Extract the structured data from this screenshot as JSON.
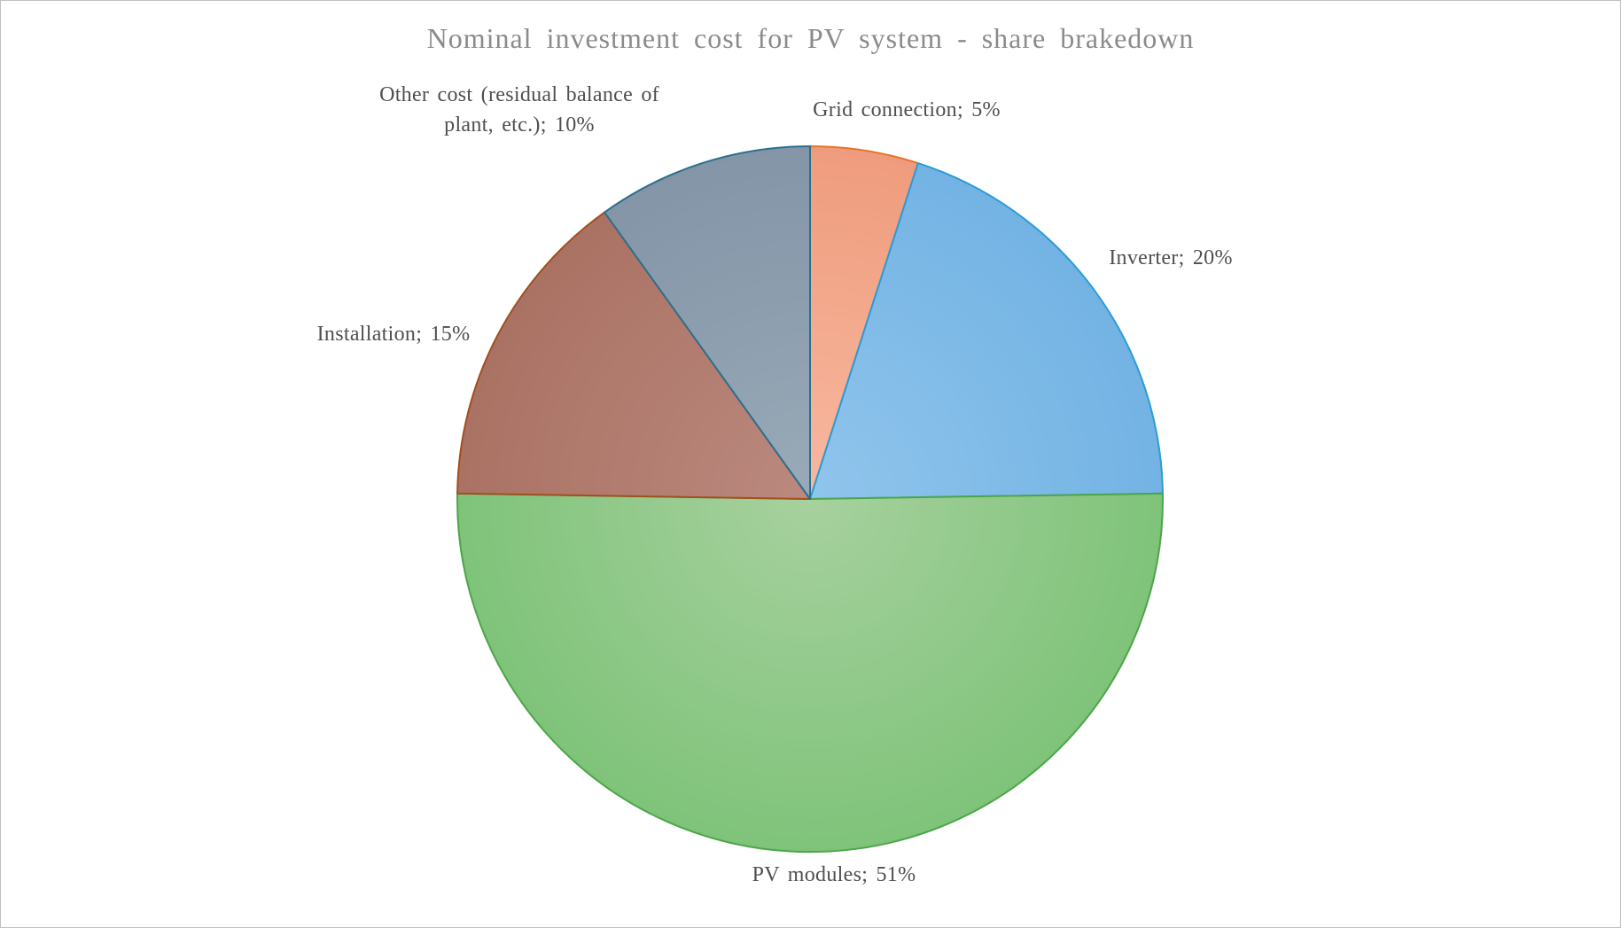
{
  "title": "Nominal investment cost for PV system - share brakedown",
  "chart_data": {
    "type": "pie",
    "title": "Nominal investment cost for PV system - share brakedown",
    "start_angle_deg": 0,
    "direction": "clockwise",
    "legend": "none",
    "label_style": "category name; percentage, outside end",
    "categories": [
      "Grid connection",
      "Inverter",
      "PV modules",
      "Installation",
      "Other cost (residual balance of plant, etc.)"
    ],
    "values": [
      5,
      20,
      51,
      15,
      10
    ],
    "unit": "%",
    "slices": [
      {
        "label": "Grid connection",
        "value": 5,
        "display": "Grid connection; 5%",
        "color_center": "#F8B89F",
        "color_edge": "#EF9C7D",
        "border_color": "#E4752B"
      },
      {
        "label": "Inverter",
        "value": 20,
        "display": "Inverter; 20%",
        "color_center": "#90C5EC",
        "color_edge": "#73B3E4",
        "border_color": "#2C9BD5"
      },
      {
        "label": "PV modules",
        "value": 51,
        "display": "PV modules; 51%",
        "color_center": "#A7D19E",
        "color_edge": "#7FC37A",
        "border_color": "#4BA647"
      },
      {
        "label": "Installation",
        "value": 15,
        "display": "Installation; 15%",
        "color_center": "#BB897F",
        "color_edge": "#AA7263",
        "border_color": "#A24E1C"
      },
      {
        "label": "Other cost (residual balance of plant, etc.)",
        "value": 10,
        "display": "Other cost (residual balance of plant, etc.); 10%",
        "color_center": "#99AAB8",
        "color_edge": "#8395A7",
        "border_color": "#2D6F8E"
      }
    ]
  },
  "colors": {
    "title_text": "#8B8B8B",
    "label_text": "#4F4F4F",
    "background": "#FFFFFF",
    "frame_border": "#BFBFBF"
  }
}
